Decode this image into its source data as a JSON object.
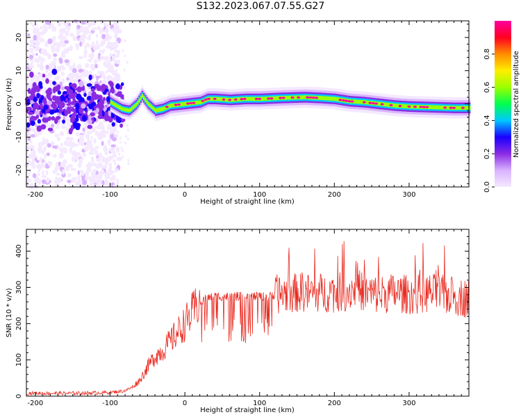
{
  "figure": {
    "title": "S132.2023.067.07.55.G27"
  },
  "colors": {
    "snr_line": "#e8281e",
    "colormap": [
      "#f4e9ff",
      "#d9b3ff",
      "#8a2be2",
      "#1a00ff",
      "#00c8ff",
      "#00ff50",
      "#9bff00",
      "#ffee00",
      "#ff8c00",
      "#ff0020",
      "#ff00a0"
    ]
  },
  "chart_data": [
    {
      "type": "heatmap",
      "title": "",
      "xlabel": "Height of straight line (km)",
      "ylabel": "Frequency (Hz)",
      "xlim": [
        -212,
        380
      ],
      "ylim": [
        -25,
        25
      ],
      "xticks": [
        -200,
        -100,
        0,
        100,
        200,
        300
      ],
      "yticks": [
        -20,
        -10,
        0,
        10,
        20
      ],
      "colorbar": {
        "label": "Normalized spectral amplitude",
        "range": [
          0.0,
          1.0
        ],
        "ticks": [
          0.0,
          0.2,
          0.4,
          0.6,
          0.8
        ],
        "tick_labels": [
          "0.0",
          "0.2",
          "0.4",
          "0.6",
          "0.8"
        ]
      },
      "ridge": {
        "x": [
          -212,
          -150,
          -100,
          -85,
          -75,
          -65,
          -58,
          -50,
          -40,
          -30,
          -20,
          0,
          20,
          30,
          40,
          60,
          80,
          100,
          130,
          160,
          180,
          200,
          220,
          240,
          260,
          280,
          300,
          330,
          360,
          380
        ],
        "y": [
          0,
          0,
          0.5,
          -1.5,
          -2,
          0,
          2.5,
          0,
          -2,
          -1.5,
          -0.5,
          0,
          0.5,
          1.5,
          1.5,
          1.2,
          1.5,
          1.5,
          1.8,
          2.0,
          1.8,
          1.5,
          0.8,
          0.5,
          0,
          -0.5,
          -0.8,
          -1.0,
          -1.2,
          -1.2
        ]
      },
      "grid": false
    },
    {
      "type": "line",
      "title": "",
      "xlabel": "Height of straight line (km)",
      "ylabel": "SNR (10 * v/v)",
      "xlim": [
        -212,
        380
      ],
      "ylim": [
        0,
        460
      ],
      "xticks": [
        -200,
        -100,
        0,
        100,
        200,
        300
      ],
      "yticks": [
        0,
        100,
        200,
        300,
        400
      ],
      "x": [
        -212,
        -150,
        -100,
        -80,
        -70,
        -60,
        -50,
        -40,
        -30,
        -20,
        -10,
        0,
        10,
        20,
        30,
        40,
        60,
        80,
        100,
        115,
        120,
        140,
        160,
        180,
        200,
        220,
        230,
        240,
        260,
        280,
        300,
        310,
        330,
        360,
        380
      ],
      "y": [
        8,
        8,
        10,
        15,
        25,
        45,
        80,
        110,
        125,
        150,
        175,
        200,
        230,
        260,
        270,
        275,
        275,
        275,
        275,
        275,
        280,
        285,
        285,
        285,
        285,
        290,
        300,
        285,
        280,
        285,
        280,
        280,
        285,
        275,
        270
      ],
      "grid": false
    }
  ]
}
